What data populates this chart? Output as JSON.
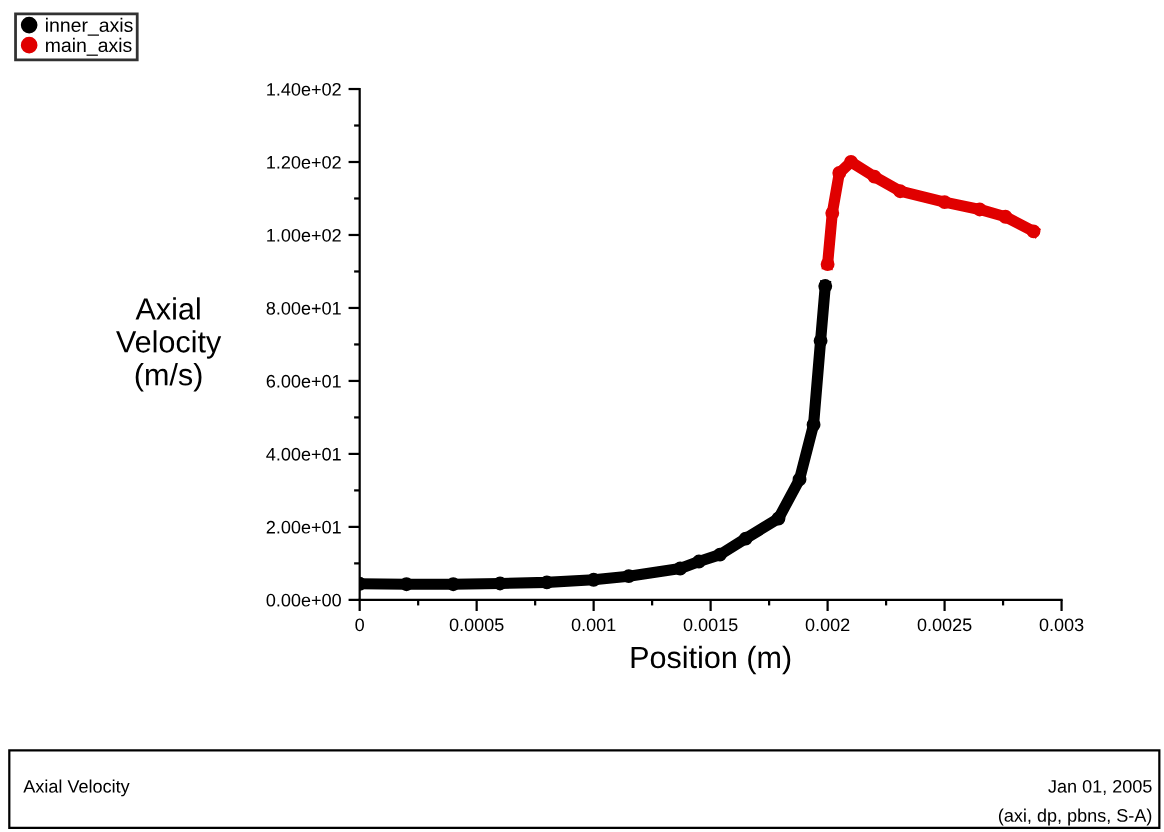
{
  "chart_data": {
    "type": "line",
    "xlabel": "Position (m)",
    "ylabel": "Axial\nVelocity\n(m/s)",
    "xlim": [
      0,
      0.003
    ],
    "ylim": [
      0,
      140
    ],
    "xticks": [
      0,
      {
        "value": 0.00025,
        "label": null
      },
      0.0005,
      {
        "value": 0.00075,
        "label": null
      },
      0.001,
      {
        "value": 0.00125,
        "label": null
      },
      0.0015,
      {
        "value": 0.00175,
        "label": null
      },
      0.002,
      {
        "value": 0.00225,
        "label": null
      },
      0.0025,
      {
        "value": 0.00275,
        "label": null
      },
      0.003
    ],
    "yticks": [
      {
        "value": 0,
        "label": "0.00e+00"
      },
      {
        "value": 10,
        "label": null
      },
      {
        "value": 20,
        "label": "2.00e+01"
      },
      {
        "value": 30,
        "label": null
      },
      {
        "value": 40,
        "label": "4.00e+01"
      },
      {
        "value": 50,
        "label": null
      },
      {
        "value": 60,
        "label": "6.00e+01"
      },
      {
        "value": 70,
        "label": null
      },
      {
        "value": 80,
        "label": "8.00e+01"
      },
      {
        "value": 90,
        "label": null
      },
      {
        "value": 100,
        "label": "1.00e+02"
      },
      {
        "value": 110,
        "label": null
      },
      {
        "value": 120,
        "label": "1.20e+02"
      },
      {
        "value": 130,
        "label": null
      },
      {
        "value": 140,
        "label": "1.40e+02"
      }
    ],
    "marker": "circle",
    "grid": false,
    "legend": "top left",
    "series": [
      {
        "name": "inner_axis",
        "color": "#000000",
        "x": [
          0,
          0.0002,
          0.0004,
          0.0006,
          0.0008,
          0.001,
          0.00115,
          0.00137,
          0.00145,
          0.00154,
          0.00165,
          0.00179,
          0.00188,
          0.00194,
          0.00197,
          0.00199
        ],
        "values": [
          4.4,
          4.3,
          4.3,
          4.5,
          4.8,
          5.5,
          6.5,
          8.6,
          10.5,
          12.4,
          16.8,
          22.3,
          33,
          48,
          71,
          86
        ]
      },
      {
        "name": "main_axis",
        "color": "#e00000",
        "x": [
          0.002,
          0.00202,
          0.00205,
          0.0021,
          0.0022,
          0.00231,
          0.0025,
          0.00265,
          0.00276,
          0.00288
        ],
        "values": [
          92,
          106,
          117,
          120,
          116,
          112,
          109,
          107,
          105,
          101
        ]
      }
    ],
    "annotations": [
      "Axial Velocity",
      "Jan 01, 2005",
      "(axi, dp, pbns, S-A)"
    ]
  }
}
